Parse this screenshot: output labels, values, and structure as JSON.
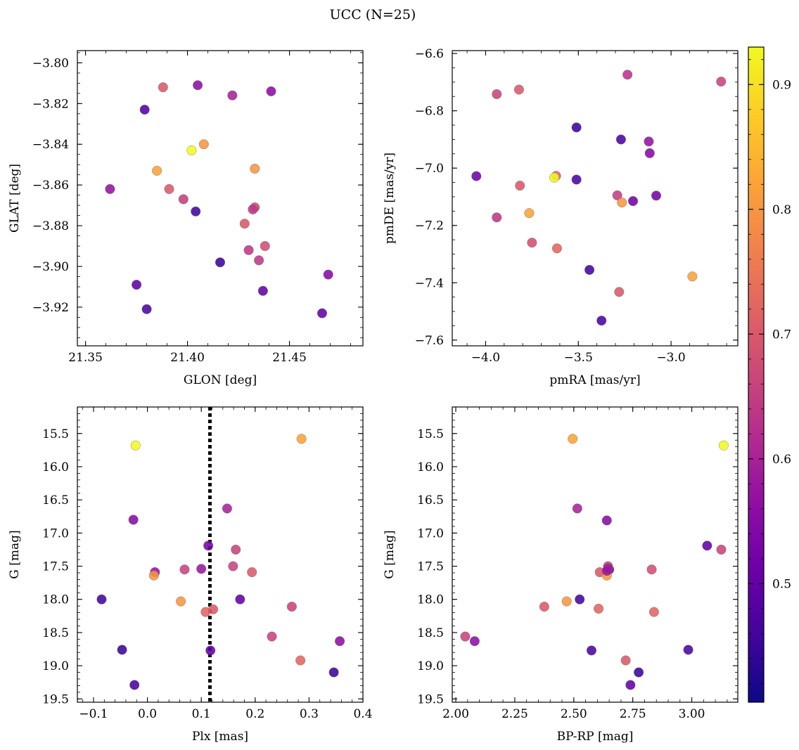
{
  "figure": {
    "title": "UCC (N=25)"
  },
  "colorbar": {
    "colormap": "plasma",
    "vmin": 0.405,
    "vmax": 0.93,
    "ticks": [
      0.5,
      0.6,
      0.7,
      0.8,
      0.9
    ],
    "tick_labels": [
      "0.5",
      "0.6",
      "0.7",
      "0.8",
      "0.9"
    ]
  },
  "chart_data": [
    {
      "type": "scatter",
      "id": "glon-glat",
      "xlabel": "GLON [deg]",
      "ylabel": "GLAT [deg]",
      "xlim": [
        21.346,
        21.486
      ],
      "ylim": [
        -3.939,
        -3.794
      ],
      "x_ticks": [
        21.35,
        21.4,
        21.45
      ],
      "x_tick_labels": [
        "21.35",
        "21.40",
        "21.45"
      ],
      "x_minor": 0.01,
      "y_ticks": [
        -3.92,
        -3.9,
        -3.88,
        -3.86,
        -3.84,
        -3.82,
        -3.8
      ],
      "y_tick_labels": [
        "−3.92",
        "−3.90",
        "−3.88",
        "−3.86",
        "−3.84",
        "−3.82",
        "−3.80"
      ],
      "y_minor": 0.005,
      "x": [
        21.388,
        21.405,
        21.422,
        21.441,
        21.379,
        21.402,
        21.408,
        21.385,
        21.433,
        21.362,
        21.391,
        21.398,
        21.404,
        21.433,
        21.432,
        21.428,
        21.43,
        21.438,
        21.435,
        21.416,
        21.469,
        21.375,
        21.437,
        21.38,
        21.466
      ],
      "y": [
        -3.812,
        -3.811,
        -3.816,
        -3.814,
        -3.823,
        -3.843,
        -3.84,
        -3.853,
        -3.852,
        -3.862,
        -3.862,
        -3.867,
        -3.873,
        -3.871,
        -3.872,
        -3.879,
        -3.892,
        -3.89,
        -3.897,
        -3.898,
        -3.904,
        -3.909,
        -3.912,
        -3.921,
        -3.923
      ],
      "color": [
        0.7,
        0.56,
        0.6,
        0.56,
        0.48,
        0.93,
        0.8,
        0.82,
        0.8,
        0.57,
        0.7,
        0.65,
        0.46,
        0.67,
        0.64,
        0.7,
        0.64,
        0.68,
        0.64,
        0.45,
        0.55,
        0.5,
        0.5,
        0.47,
        0.5
      ]
    },
    {
      "type": "scatter",
      "id": "pmra-pmde",
      "xlabel": "pmRA [mas/yr]",
      "ylabel": "pmDE [mas/yr]",
      "xlim": [
        -4.18,
        -2.64
      ],
      "ylim": [
        -7.62,
        -6.59
      ],
      "x_ticks": [
        -4.0,
        -3.5,
        -3.0
      ],
      "x_tick_labels": [
        "−4.0",
        "−3.5",
        "−3.0"
      ],
      "x_minor": 0.1,
      "y_ticks": [
        -7.6,
        -7.4,
        -7.2,
        -7.0,
        -6.8,
        -6.6
      ],
      "y_tick_labels": [
        "−7.6",
        "−7.4",
        "−7.2",
        "−7.0",
        "−6.8",
        "−6.6"
      ],
      "y_minor": 0.05,
      "x": [
        -3.235,
        -2.73,
        -3.94,
        -3.82,
        -3.51,
        -3.27,
        -3.12,
        -3.115,
        -4.05,
        -3.62,
        -3.63,
        -3.51,
        -3.815,
        -3.29,
        -3.08,
        -3.205,
        -3.265,
        -3.94,
        -3.765,
        -3.75,
        -3.615,
        -3.44,
        -2.885,
        -3.28,
        -3.375
      ],
      "y": [
        -6.674,
        -6.698,
        -6.742,
        -6.726,
        -6.858,
        -6.9,
        -6.907,
        -6.948,
        -7.028,
        -7.027,
        -7.033,
        -7.04,
        -7.061,
        -7.095,
        -7.096,
        -7.115,
        -7.12,
        -7.172,
        -7.157,
        -7.26,
        -7.28,
        -7.355,
        -7.378,
        -7.432,
        -7.532
      ],
      "color": [
        0.63,
        0.66,
        0.66,
        0.7,
        0.45,
        0.47,
        0.57,
        0.55,
        0.52,
        0.72,
        0.93,
        0.47,
        0.7,
        0.65,
        0.53,
        0.52,
        0.8,
        0.64,
        0.82,
        0.68,
        0.72,
        0.46,
        0.82,
        0.7,
        0.47
      ]
    },
    {
      "type": "scatter",
      "id": "plx-g",
      "xlabel": "Plx [mas]",
      "ylabel": "G [mag]",
      "xlim": [
        -0.13,
        0.4
      ],
      "ylim": [
        19.55,
        15.1
      ],
      "y_inverted": true,
      "x_ticks": [
        -0.1,
        0.0,
        0.1,
        0.2,
        0.3,
        0.4
      ],
      "x_tick_labels": [
        "−0.1",
        "0.0",
        "0.1",
        "0.2",
        "0.3",
        "0.4"
      ],
      "x_minor": 0.02,
      "y_ticks": [
        15.5,
        16.0,
        16.5,
        17.0,
        17.5,
        18.0,
        18.5,
        19.0,
        19.5
      ],
      "y_tick_labels": [
        "15.5",
        "16.0",
        "16.5",
        "17.0",
        "17.5",
        "18.0",
        "18.5",
        "19.0",
        "19.5"
      ],
      "y_minor": 0.1,
      "vline": {
        "x": 0.116,
        "style": "dotted",
        "color": "#000000"
      },
      "x": [
        -0.022,
        0.286,
        0.148,
        -0.026,
        0.113,
        0.164,
        0.014,
        0.069,
        0.1,
        0.159,
        0.194,
        0.012,
        -0.085,
        0.062,
        0.122,
        0.172,
        0.108,
        0.268,
        0.231,
        0.357,
        -0.047,
        0.117,
        0.284,
        -0.024,
        0.346
      ],
      "y": [
        15.68,
        15.58,
        16.63,
        16.8,
        17.19,
        17.25,
        17.59,
        17.55,
        17.54,
        17.5,
        17.59,
        17.64,
        18.0,
        18.03,
        18.15,
        18.0,
        18.19,
        18.11,
        18.56,
        18.63,
        18.76,
        18.77,
        18.92,
        19.29,
        19.1
      ],
      "color": [
        0.93,
        0.82,
        0.6,
        0.55,
        0.53,
        0.66,
        0.57,
        0.66,
        0.58,
        0.66,
        0.7,
        0.8,
        0.46,
        0.8,
        0.7,
        0.5,
        0.72,
        0.66,
        0.66,
        0.56,
        0.45,
        0.5,
        0.72,
        0.47,
        0.45
      ]
    },
    {
      "type": "scatter",
      "id": "bprp-g",
      "xlabel": "BP-RP [mag]",
      "ylabel": "G [mag]",
      "xlim": [
        1.985,
        3.195
      ],
      "ylim": [
        19.55,
        15.1
      ],
      "y_inverted": true,
      "x_ticks": [
        2.0,
        2.25,
        2.5,
        2.75,
        3.0
      ],
      "x_tick_labels": [
        "2.00",
        "2.25",
        "2.50",
        "2.75",
        "3.00"
      ],
      "x_minor": 0.05,
      "y_ticks": [
        15.5,
        16.0,
        16.5,
        17.0,
        17.5,
        18.0,
        18.5,
        19.0,
        19.5
      ],
      "y_tick_labels": [
        "15.5",
        "16.0",
        "16.5",
        "17.0",
        "17.5",
        "18.0",
        "18.5",
        "19.0",
        "19.5"
      ],
      "y_minor": 0.1,
      "x": [
        2.495,
        3.135,
        2.515,
        2.64,
        3.065,
        3.125,
        2.645,
        2.65,
        2.61,
        2.64,
        2.83,
        2.525,
        2.47,
        2.375,
        2.605,
        2.84,
        2.04,
        2.08,
        2.575,
        2.985,
        2.72,
        2.775,
        2.74,
        2.645,
        2.64
      ],
      "y": [
        15.58,
        15.68,
        16.63,
        16.81,
        17.19,
        17.25,
        17.5,
        17.55,
        17.59,
        17.64,
        17.55,
        18.0,
        18.03,
        18.11,
        18.14,
        18.19,
        18.56,
        18.63,
        18.77,
        18.76,
        18.92,
        19.1,
        19.29,
        17.53,
        17.57
      ],
      "color": [
        0.82,
        0.93,
        0.6,
        0.55,
        0.5,
        0.66,
        0.66,
        0.5,
        0.7,
        0.8,
        0.68,
        0.46,
        0.8,
        0.7,
        0.72,
        0.72,
        0.66,
        0.56,
        0.47,
        0.47,
        0.7,
        0.45,
        0.5,
        0.6,
        0.58
      ]
    }
  ]
}
